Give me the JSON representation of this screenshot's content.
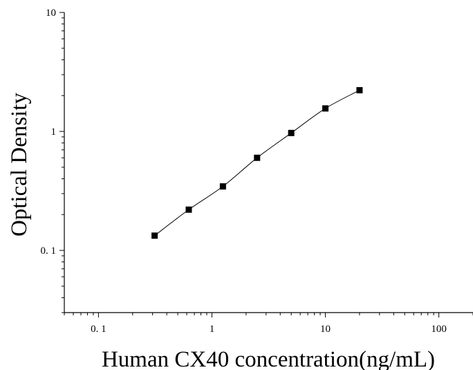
{
  "chart_data": {
    "type": "scatter",
    "title": "",
    "xlabel": "Human CX40 concentration(ng/mL)",
    "ylabel": "Optical Density",
    "x_scale": "log",
    "y_scale": "log",
    "xlim": [
      0.05,
      200
    ],
    "ylim": [
      0.03,
      10
    ],
    "x_ticks": [
      {
        "value": 0.1,
        "label": "0. 1"
      },
      {
        "value": 1,
        "label": "1"
      },
      {
        "value": 10,
        "label": "10"
      },
      {
        "value": 100,
        "label": "100"
      }
    ],
    "y_ticks": [
      {
        "value": 0.1,
        "label": "0. 1"
      },
      {
        "value": 1,
        "label": "1"
      },
      {
        "value": 10,
        "label": "10"
      }
    ],
    "grid": false,
    "legend": "none",
    "marker_color": "#000000",
    "line_color": "#000000",
    "series": [
      {
        "x": [
          0.3125,
          0.625,
          1.25,
          2.5,
          5,
          10,
          20
        ],
        "y": [
          0.133,
          0.22,
          0.345,
          0.6,
          0.97,
          1.56,
          2.22
        ]
      }
    ]
  }
}
